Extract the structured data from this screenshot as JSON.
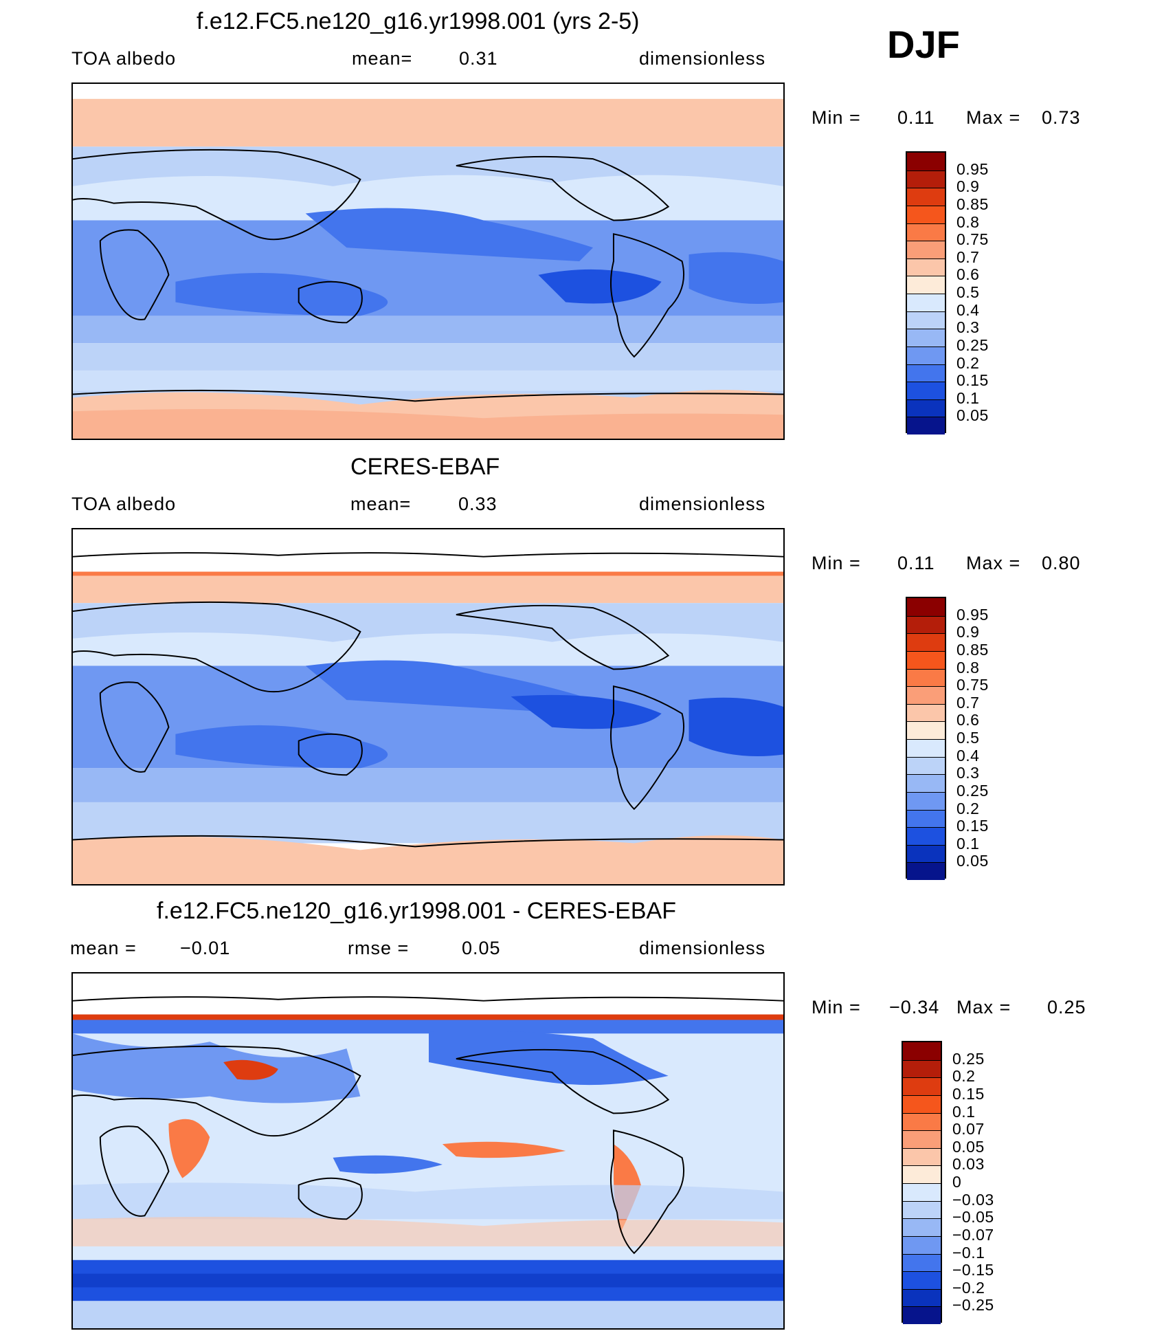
{
  "season": "DJF",
  "panels": [
    {
      "title": "f.e12.FC5.ne120_g16.yr1998.001 (yrs 2-5)",
      "left_label": "TOA  albedo",
      "center_label": "mean=",
      "center_value": "0.31",
      "right_label": "dimensionless",
      "min_label": "Min  =",
      "min_value": "0.11",
      "max_label": "Max  =",
      "max_value": "0.73",
      "colorbar": {
        "labels": [
          "0.95",
          "0.9",
          "0.85",
          "0.8",
          "0.75",
          "0.7",
          "0.6",
          "0.5",
          "0.4",
          "0.3",
          "0.25",
          "0.2",
          "0.15",
          "0.1",
          "0.05"
        ],
        "colors": [
          "#8b0000",
          "#b41e0a",
          "#de3c10",
          "#f5561c",
          "#fa7a46",
          "#fa9e78",
          "#fbc6aa",
          "#fdebd9",
          "#d9e9fd",
          "#bcd3f8",
          "#98b8f5",
          "#6f98f2",
          "#4375ed",
          "#1d51e0",
          "#0a33bd",
          "#06148c"
        ]
      }
    },
    {
      "title": "CERES-EBAF",
      "left_label": "TOA  albedo",
      "center_label": "mean=",
      "center_value": "0.33",
      "right_label": "dimensionless",
      "min_label": "Min  =",
      "min_value": "0.11",
      "max_label": "Max  =",
      "max_value": "0.80",
      "colorbar": {
        "labels": [
          "0.95",
          "0.9",
          "0.85",
          "0.8",
          "0.75",
          "0.7",
          "0.6",
          "0.5",
          "0.4",
          "0.3",
          "0.25",
          "0.2",
          "0.15",
          "0.1",
          "0.05"
        ],
        "colors": [
          "#8b0000",
          "#b41e0a",
          "#de3c10",
          "#f5561c",
          "#fa7a46",
          "#fa9e78",
          "#fbc6aa",
          "#fdebd9",
          "#d9e9fd",
          "#bcd3f8",
          "#98b8f5",
          "#6f98f2",
          "#4375ed",
          "#1d51e0",
          "#0a33bd",
          "#06148c"
        ]
      }
    },
    {
      "title": "f.e12.FC5.ne120_g16.yr1998.001 - CERES-EBAF",
      "left_label": "mean  =",
      "left_value": "−0.01",
      "center_label": "rmse  =",
      "center_value": "0.05",
      "right_label": "dimensionless",
      "min_label": "Min  =",
      "min_value": "−0.34",
      "max_label": "Max  =",
      "max_value": "0.25",
      "colorbar": {
        "labels": [
          "0.25",
          "0.2",
          "0.15",
          "0.1",
          "0.07",
          "0.05",
          "0.03",
          "0",
          "−0.03",
          "−0.05",
          "−0.07",
          "−0.1",
          "−0.15",
          "−0.2",
          "−0.25"
        ],
        "colors": [
          "#8b0000",
          "#b41e0a",
          "#de3c10",
          "#f5561c",
          "#fa7a46",
          "#fa9e78",
          "#fbc6aa",
          "#fdebd9",
          "#d9e9fd",
          "#bcd3f8",
          "#98b8f5",
          "#6f98f2",
          "#4375ed",
          "#1d51e0",
          "#0a33bd",
          "#06148c"
        ]
      }
    }
  ]
}
